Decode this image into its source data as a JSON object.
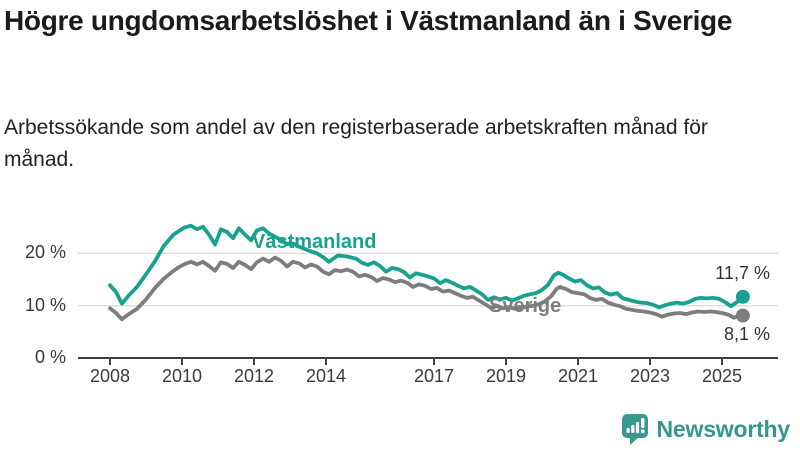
{
  "header": {
    "title": "Högre ungdomsarbetslöshet i Västmanland än i Sverige",
    "subtitle": "Arbetssökande som andel av den registerbaserade arbetskraften månad för månad."
  },
  "chart_data": {
    "type": "line",
    "title": "Högre ungdomsarbetslöshet i Västmanland än i Sverige",
    "xlabel": "",
    "ylabel": "Arbetssökande som andel av den registerbaserade arbetskraften (%)",
    "x_range": [
      2007.7,
      2025.9
    ],
    "ylim": [
      0,
      27
    ],
    "grid": true,
    "legend_position": "inline-labels",
    "colors": {
      "grid": "#dcdcdc",
      "axis": "#3f3f3f",
      "tick_text": "#3a3a3a"
    },
    "y_ticks": [
      {
        "value": 0,
        "label": "0 %"
      },
      {
        "value": 10,
        "label": "10 %"
      },
      {
        "value": 20,
        "label": "20 %"
      }
    ],
    "x_ticks": [
      {
        "year": 2008,
        "label": "2008"
      },
      {
        "year": 2010,
        "label": "2010"
      },
      {
        "year": 2012,
        "label": "2012"
      },
      {
        "year": 2014,
        "label": "2014"
      },
      {
        "year": 2017,
        "label": "2017"
      },
      {
        "year": 2019,
        "label": "2019"
      },
      {
        "year": 2021,
        "label": "2021"
      },
      {
        "year": 2023,
        "label": "2023"
      },
      {
        "year": 2025,
        "label": "2025"
      }
    ],
    "series": [
      {
        "name": "Västmanland",
        "color": "#17a28e",
        "end_label": "11,7 %",
        "end_value": 11.7,
        "points": [
          [
            2008.0,
            13.9
          ],
          [
            2008.17,
            12.6
          ],
          [
            2008.33,
            10.4
          ],
          [
            2008.5,
            11.8
          ],
          [
            2008.75,
            13.6
          ],
          [
            2009.0,
            16.0
          ],
          [
            2009.25,
            18.5
          ],
          [
            2009.5,
            21.5
          ],
          [
            2009.75,
            23.5
          ],
          [
            2009.92,
            24.3
          ],
          [
            2010.08,
            25.0
          ],
          [
            2010.25,
            25.3
          ],
          [
            2010.42,
            24.6
          ],
          [
            2010.58,
            25.1
          ],
          [
            2010.75,
            23.6
          ],
          [
            2010.92,
            21.7
          ],
          [
            2011.08,
            24.6
          ],
          [
            2011.25,
            24.1
          ],
          [
            2011.42,
            22.9
          ],
          [
            2011.58,
            24.8
          ],
          [
            2011.75,
            23.6
          ],
          [
            2011.92,
            22.5
          ],
          [
            2012.08,
            24.4
          ],
          [
            2012.25,
            24.8
          ],
          [
            2012.42,
            23.8
          ],
          [
            2012.58,
            23.2
          ],
          [
            2012.75,
            22.6
          ],
          [
            2012.92,
            21.8
          ],
          [
            2013.08,
            21.9
          ],
          [
            2013.25,
            21.3
          ],
          [
            2013.5,
            20.6
          ],
          [
            2013.75,
            20.0
          ],
          [
            2013.92,
            19.3
          ],
          [
            2014.08,
            18.4
          ],
          [
            2014.33,
            19.6
          ],
          [
            2014.58,
            19.4
          ],
          [
            2014.83,
            19.0
          ],
          [
            2015.0,
            18.2
          ],
          [
            2015.17,
            17.8
          ],
          [
            2015.33,
            18.3
          ],
          [
            2015.5,
            17.6
          ],
          [
            2015.67,
            16.5
          ],
          [
            2015.83,
            17.2
          ],
          [
            2016.0,
            17.0
          ],
          [
            2016.17,
            16.4
          ],
          [
            2016.33,
            15.4
          ],
          [
            2016.5,
            16.2
          ],
          [
            2016.67,
            15.9
          ],
          [
            2016.83,
            15.6
          ],
          [
            2017.0,
            15.2
          ],
          [
            2017.17,
            14.3
          ],
          [
            2017.33,
            14.9
          ],
          [
            2017.5,
            14.4
          ],
          [
            2017.67,
            13.8
          ],
          [
            2017.83,
            13.3
          ],
          [
            2018.0,
            13.6
          ],
          [
            2018.17,
            12.9
          ],
          [
            2018.33,
            12.2
          ],
          [
            2018.5,
            11.1
          ],
          [
            2018.67,
            11.6
          ],
          [
            2018.83,
            11.2
          ],
          [
            2019.0,
            11.5
          ],
          [
            2019.17,
            11.0
          ],
          [
            2019.33,
            11.4
          ],
          [
            2019.5,
            11.9
          ],
          [
            2019.67,
            12.2
          ],
          [
            2019.83,
            12.4
          ],
          [
            2020.0,
            13.0
          ],
          [
            2020.17,
            14.0
          ],
          [
            2020.33,
            15.8
          ],
          [
            2020.45,
            16.3
          ],
          [
            2020.58,
            15.9
          ],
          [
            2020.75,
            15.2
          ],
          [
            2020.92,
            14.6
          ],
          [
            2021.08,
            14.9
          ],
          [
            2021.25,
            13.9
          ],
          [
            2021.42,
            13.3
          ],
          [
            2021.58,
            13.5
          ],
          [
            2021.75,
            12.5
          ],
          [
            2021.92,
            12.1
          ],
          [
            2022.08,
            12.4
          ],
          [
            2022.25,
            11.4
          ],
          [
            2022.42,
            11.1
          ],
          [
            2022.58,
            10.8
          ],
          [
            2022.75,
            10.6
          ],
          [
            2022.92,
            10.5
          ],
          [
            2023.08,
            10.2
          ],
          [
            2023.25,
            9.7
          ],
          [
            2023.42,
            10.1
          ],
          [
            2023.58,
            10.4
          ],
          [
            2023.75,
            10.6
          ],
          [
            2023.92,
            10.4
          ],
          [
            2024.08,
            10.7
          ],
          [
            2024.25,
            11.3
          ],
          [
            2024.42,
            11.5
          ],
          [
            2024.58,
            11.4
          ],
          [
            2024.75,
            11.5
          ],
          [
            2024.92,
            11.3
          ],
          [
            2025.08,
            10.7
          ],
          [
            2025.25,
            9.9
          ],
          [
            2025.42,
            10.7
          ],
          [
            2025.58,
            11.7
          ]
        ]
      },
      {
        "name": "Sverige",
        "color": "#7d7d7d",
        "end_label": "8,1 %",
        "end_value": 8.1,
        "points": [
          [
            2008.0,
            9.5
          ],
          [
            2008.17,
            8.6
          ],
          [
            2008.33,
            7.4
          ],
          [
            2008.5,
            8.3
          ],
          [
            2008.75,
            9.4
          ],
          [
            2009.0,
            11.2
          ],
          [
            2009.25,
            13.4
          ],
          [
            2009.5,
            15.2
          ],
          [
            2009.75,
            16.6
          ],
          [
            2009.92,
            17.4
          ],
          [
            2010.08,
            18.0
          ],
          [
            2010.25,
            18.4
          ],
          [
            2010.42,
            17.9
          ],
          [
            2010.58,
            18.4
          ],
          [
            2010.75,
            17.6
          ],
          [
            2010.92,
            16.7
          ],
          [
            2011.08,
            18.3
          ],
          [
            2011.25,
            18.0
          ],
          [
            2011.42,
            17.2
          ],
          [
            2011.58,
            18.4
          ],
          [
            2011.75,
            17.8
          ],
          [
            2011.92,
            17.0
          ],
          [
            2012.08,
            18.3
          ],
          [
            2012.25,
            19.0
          ],
          [
            2012.42,
            18.4
          ],
          [
            2012.58,
            19.2
          ],
          [
            2012.75,
            18.6
          ],
          [
            2012.92,
            17.5
          ],
          [
            2013.08,
            18.4
          ],
          [
            2013.25,
            18.1
          ],
          [
            2013.42,
            17.3
          ],
          [
            2013.58,
            17.9
          ],
          [
            2013.75,
            17.5
          ],
          [
            2013.92,
            16.5
          ],
          [
            2014.08,
            16.0
          ],
          [
            2014.25,
            16.8
          ],
          [
            2014.42,
            16.6
          ],
          [
            2014.58,
            16.9
          ],
          [
            2014.75,
            16.5
          ],
          [
            2014.92,
            15.6
          ],
          [
            2015.08,
            15.9
          ],
          [
            2015.25,
            15.5
          ],
          [
            2015.42,
            14.7
          ],
          [
            2015.58,
            15.3
          ],
          [
            2015.75,
            15.0
          ],
          [
            2015.92,
            14.5
          ],
          [
            2016.08,
            14.8
          ],
          [
            2016.25,
            14.4
          ],
          [
            2016.42,
            13.6
          ],
          [
            2016.58,
            14.1
          ],
          [
            2016.75,
            13.8
          ],
          [
            2016.92,
            13.2
          ],
          [
            2017.08,
            13.4
          ],
          [
            2017.25,
            12.7
          ],
          [
            2017.42,
            12.9
          ],
          [
            2017.58,
            12.4
          ],
          [
            2017.75,
            11.9
          ],
          [
            2017.92,
            11.5
          ],
          [
            2018.08,
            11.7
          ],
          [
            2018.25,
            11.0
          ],
          [
            2018.42,
            10.3
          ],
          [
            2018.58,
            9.6
          ],
          [
            2018.75,
            9.9
          ],
          [
            2018.92,
            9.5
          ],
          [
            2019.08,
            9.7
          ],
          [
            2019.25,
            9.4
          ],
          [
            2019.42,
            9.6
          ],
          [
            2019.58,
            9.8
          ],
          [
            2019.75,
            10.0
          ],
          [
            2019.92,
            10.3
          ],
          [
            2020.08,
            10.8
          ],
          [
            2020.25,
            11.8
          ],
          [
            2020.42,
            13.3
          ],
          [
            2020.5,
            13.6
          ],
          [
            2020.67,
            13.2
          ],
          [
            2020.83,
            12.6
          ],
          [
            2021.0,
            12.4
          ],
          [
            2021.17,
            12.2
          ],
          [
            2021.33,
            11.5
          ],
          [
            2021.5,
            11.1
          ],
          [
            2021.67,
            11.3
          ],
          [
            2021.83,
            10.6
          ],
          [
            2022.0,
            10.2
          ],
          [
            2022.17,
            9.9
          ],
          [
            2022.33,
            9.4
          ],
          [
            2022.5,
            9.2
          ],
          [
            2022.67,
            9.0
          ],
          [
            2022.83,
            8.9
          ],
          [
            2023.0,
            8.7
          ],
          [
            2023.17,
            8.4
          ],
          [
            2023.33,
            7.9
          ],
          [
            2023.5,
            8.3
          ],
          [
            2023.67,
            8.5
          ],
          [
            2023.83,
            8.6
          ],
          [
            2024.0,
            8.4
          ],
          [
            2024.17,
            8.7
          ],
          [
            2024.33,
            8.9
          ],
          [
            2024.5,
            8.8
          ],
          [
            2024.67,
            8.9
          ],
          [
            2024.83,
            8.8
          ],
          [
            2025.0,
            8.6
          ],
          [
            2025.17,
            8.3
          ],
          [
            2025.33,
            7.7
          ],
          [
            2025.45,
            8.0
          ],
          [
            2025.58,
            8.1
          ]
        ]
      }
    ]
  },
  "footer": {
    "brand": "Newsworthy",
    "brand_color": "#369690"
  }
}
